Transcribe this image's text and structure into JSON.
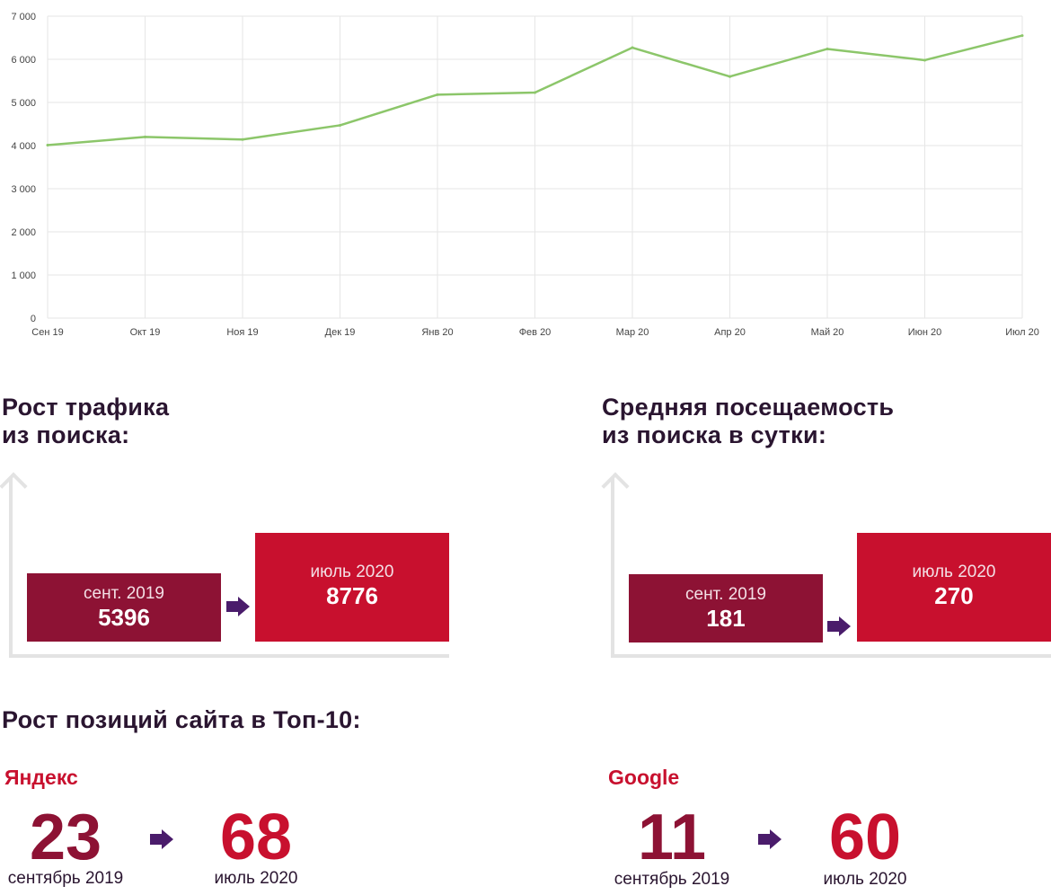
{
  "chart_data": {
    "type": "line",
    "categories": [
      "Сен 19",
      "Окт 19",
      "Ноя 19",
      "Дек 19",
      "Янв 20",
      "Фев 20",
      "Мар 20",
      "Апр 20",
      "Май 20",
      "Июн 20",
      "Июл 20"
    ],
    "series": [
      {
        "values": [
          4010,
          4200,
          4140,
          4470,
          5180,
          5230,
          6270,
          5600,
          6240,
          5980,
          6550
        ]
      }
    ],
    "yticks": [
      "0",
      "1 000",
      "2 000",
      "3 000",
      "4 000",
      "5 000",
      "6 000",
      "7 000"
    ],
    "ylim": [
      0,
      7000
    ],
    "grid": true,
    "line_color": "#8cc66a"
  },
  "traffic": {
    "title_line1": "Рост трафика",
    "title_line2": "из поиска:",
    "from_label": "сент. 2019",
    "from_value": "5396",
    "to_label": "июль 2020",
    "to_value": "8776"
  },
  "daily": {
    "title_line1": "Средняя посещаемость",
    "title_line2": "из поиска в сутки:",
    "from_label": "сент. 2019",
    "from_value": "181",
    "to_label": "июль 2020",
    "to_value": "270"
  },
  "top10": {
    "title": "Рост позиций сайта в Топ-10:",
    "yandex": {
      "name": "Яндекс",
      "from_value": "23",
      "from_caption": "сентябрь 2019",
      "to_value": "68",
      "to_caption": "июль 2020"
    },
    "google": {
      "name": "Google",
      "from_value": "11",
      "from_caption": "сентябрь 2019",
      "to_value": "60",
      "to_caption": "июль 2020"
    }
  },
  "colors": {
    "dark_red": "#8d1234",
    "red": "#c8102e",
    "purple_arrow": "#4a1c6b"
  }
}
